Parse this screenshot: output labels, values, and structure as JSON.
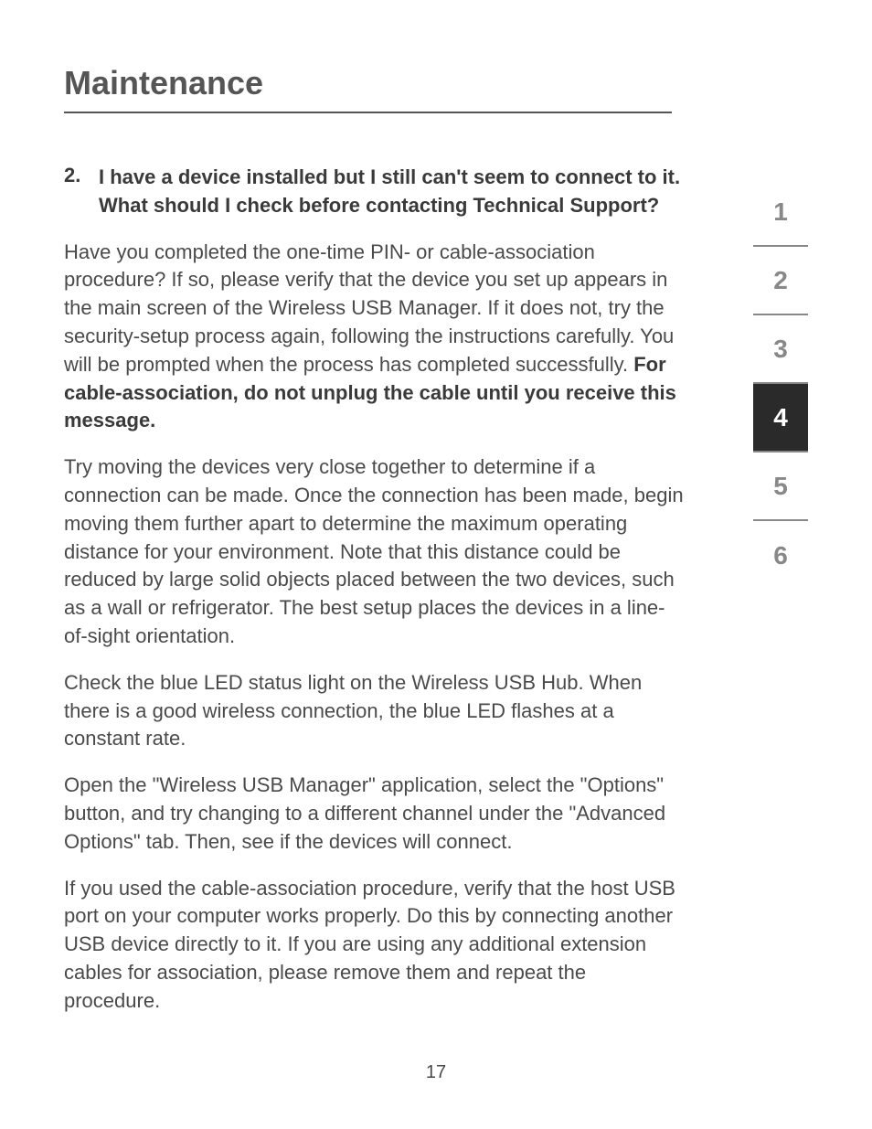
{
  "title": "Maintenance",
  "question": {
    "number": "2.",
    "text": "I have a device installed but I still can't seem to connect to it. What should I check before contacting Technical Support?"
  },
  "paragraphs": {
    "p1_a": "Have you completed the one-time PIN- or cable-association procedure? If so, please verify that the device you set up appears in the main screen of the Wireless USB Manager. If it does not, try the security-setup process again, following the instructions carefully. You will be prompted when the process has completed successfully. ",
    "p1_bold": "For cable-association, do not unplug the cable until you receive this message.",
    "p2": "Try moving the devices very close together to determine if a connection can be made. Once the connection has been made, begin moving them further apart to determine the maximum operating distance for your environment. Note that this distance could be reduced by large solid objects placed between the two devices, such as a wall or refrigerator. The best setup places the devices in a line-of-sight orientation.",
    "p3": "Check the blue LED status light on the Wireless USB Hub. When there is a good wireless connection, the blue LED flashes at a constant rate.",
    "p4": "Open the \"Wireless USB Manager\" application, select the \"Options\" button, and try changing to a different channel under the \"Advanced Options\" tab. Then, see if the devices will connect.",
    "p5": "If you used the cable-association procedure, verify that the host USB port on your computer works properly. Do this by connecting another USB device directly to it. If you are using any additional extension cables for association, please remove them and repeat the procedure."
  },
  "nav": {
    "items": [
      "1",
      "2",
      "3",
      "4",
      "5",
      "6"
    ],
    "active_index": 3
  },
  "page_number": "17",
  "colors": {
    "text": "#4a4a4a",
    "heading": "#555",
    "nav_inactive": "#888",
    "nav_active_bg": "#2a2a2a",
    "nav_active_fg": "#ffffff",
    "background": "#ffffff"
  }
}
